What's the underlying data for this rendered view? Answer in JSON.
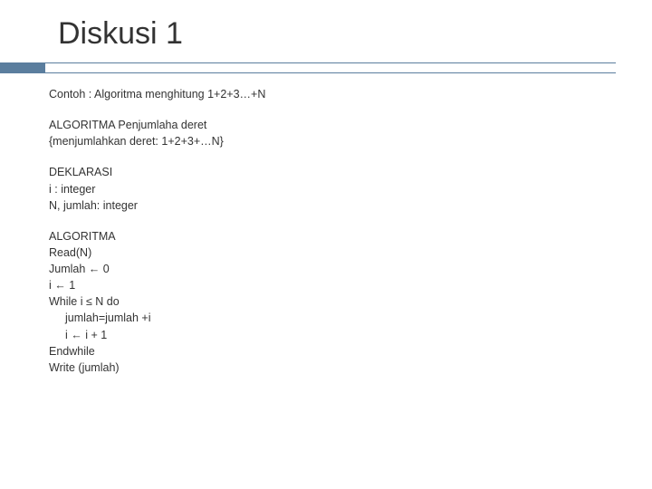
{
  "slide": {
    "title": "Diskusi 1",
    "accent_color": "#5b7e9e",
    "background_color": "#ffffff",
    "text_color": "#333333",
    "title_fontsize": 34,
    "body_fontsize": 12.5,
    "intro": "Contoh : Algoritma menghitung 1+2+3…+N",
    "algo_header": {
      "line1": "ALGORITMA Penjumlaha deret",
      "line2": "{menjumlahkan deret: 1+2+3+…N}"
    },
    "deklarasi": {
      "header": "DEKLARASI",
      "line1": "i : integer",
      "line2": "N, jumlah: integer"
    },
    "algoritma": {
      "header": "ALGORITMA",
      "l1": "Read(N)",
      "l2": "Jumlah ← 0",
      "l3": "i ← 1",
      "l4": "While i  ≤ N do",
      "l5": "jumlah=jumlah +i",
      "l6": "i ← i + 1",
      "l7": "Endwhile",
      "l8": "Write (jumlah)"
    }
  }
}
